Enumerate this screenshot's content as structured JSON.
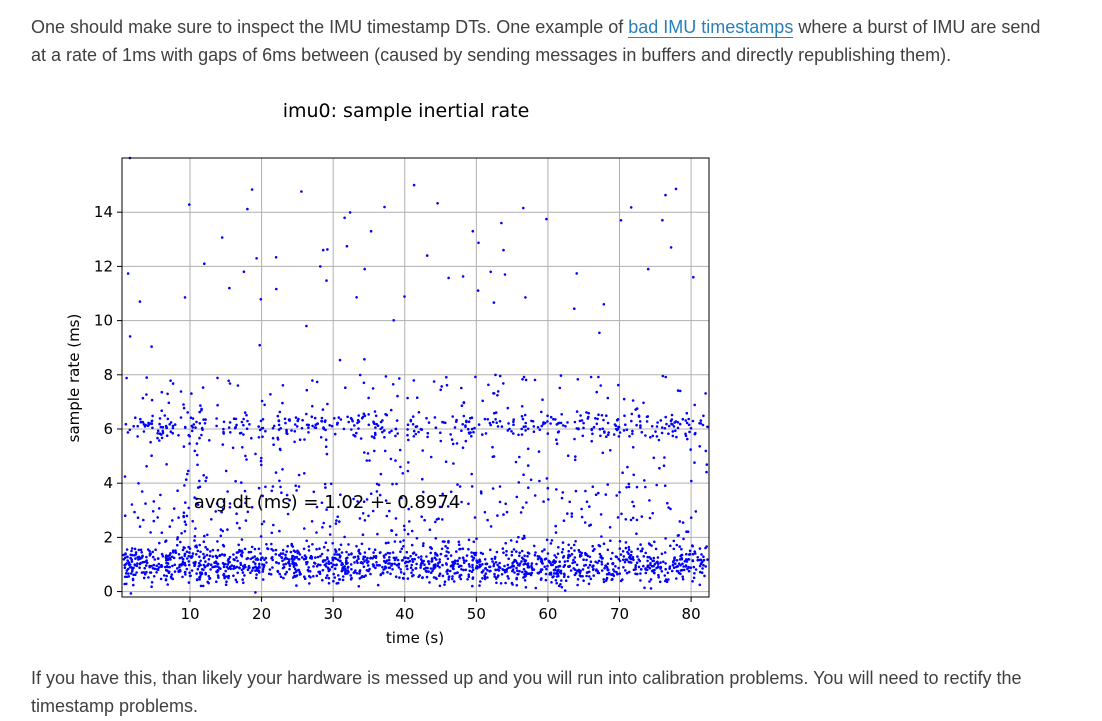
{
  "paragraph_top": {
    "line1_before": "One should make sure to inspect the IMU timestamp DTs. One example of ",
    "link_text": "bad IMU timestamps",
    "line1_after": " where a burst of IMU are send",
    "line2": "at a rate of 1ms with gaps of 6ms between (caused by sending messages in buffers and directly republishing them)."
  },
  "paragraph_bottom": {
    "line1": "If you have this, than likely your hardware is messed up and you will run into calibration problems. You will need to rectify the",
    "line2": "timestamp problems."
  },
  "chart_data": {
    "type": "scatter",
    "title": "imu0: sample inertial rate",
    "xlabel": "time (s)",
    "ylabel": "sample rate (ms)",
    "annotation": "avg dt (ms) = 1.02 +- 0.8974",
    "xlim": [
      0.5,
      82.5
    ],
    "ylim": [
      -0.2,
      16.0
    ],
    "xticks": [
      10,
      20,
      30,
      40,
      50,
      60,
      70,
      80
    ],
    "yticks": [
      0,
      2,
      4,
      6,
      8,
      10,
      12,
      14
    ],
    "grid": true,
    "point_color": "#0000ff",
    "clusters": [
      {
        "y_center": 1.0,
        "spread": 0.35,
        "count": 1400
      },
      {
        "y_center": 6.1,
        "spread": 0.25,
        "count": 420
      }
    ],
    "scattered_range": [
      0.0,
      15.0
    ],
    "scattered_count": 700,
    "outliers": [
      {
        "x": 41.3,
        "y": 15.0
      },
      {
        "x": 49.5,
        "y": 13.3
      },
      {
        "x": 53.5,
        "y": 13.6
      },
      {
        "x": 53.8,
        "y": 12.6
      },
      {
        "x": 70.2,
        "y": 13.7
      },
      {
        "x": 77.2,
        "y": 12.7
      },
      {
        "x": 12.0,
        "y": 12.1
      },
      {
        "x": 19.3,
        "y": 12.3
      },
      {
        "x": 28.6,
        "y": 12.6
      },
      {
        "x": 35.3,
        "y": 13.3
      },
      {
        "x": 28.2,
        "y": 12.0
      },
      {
        "x": 34.4,
        "y": 11.9
      },
      {
        "x": 52.0,
        "y": 11.8
      },
      {
        "x": 54.0,
        "y": 11.7
      },
      {
        "x": 74.0,
        "y": 11.9
      },
      {
        "x": 80.3,
        "y": 11.6
      },
      {
        "x": 3.0,
        "y": 10.7
      },
      {
        "x": 15.5,
        "y": 11.2
      },
      {
        "x": 67.8,
        "y": 10.6
      },
      {
        "x": 1.6,
        "y": 16.0
      }
    ]
  }
}
